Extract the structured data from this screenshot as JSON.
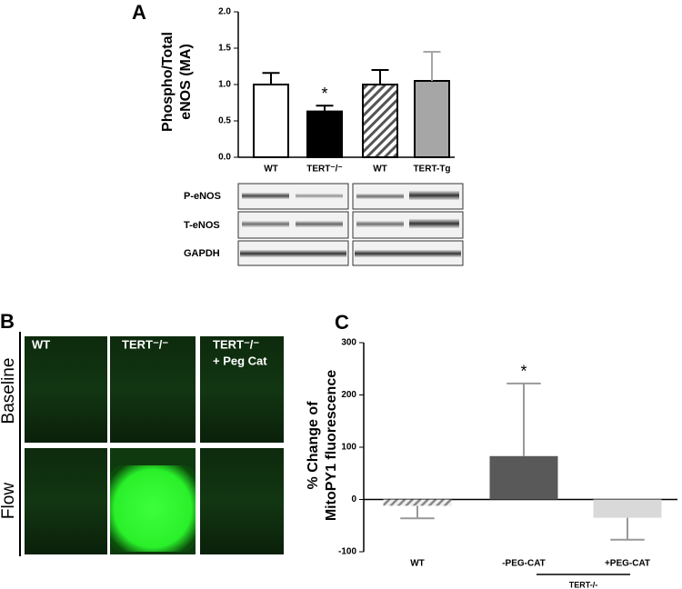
{
  "chart_data": [
    {
      "type": "bar",
      "label": "A",
      "ylabel": [
        "Phospho/Total",
        "eNOS (MA)"
      ],
      "categories": [
        "WT",
        "TERT⁻/⁻",
        "WT",
        "TERT-Tg"
      ],
      "values": [
        1.0,
        0.63,
        1.0,
        1.05
      ],
      "errors": [
        0.16,
        0.08,
        0.2,
        0.4
      ],
      "colors": [
        "#ffffff",
        "#000000",
        "#ffffff",
        "#a6a6a6"
      ],
      "patterns": [
        "solid",
        "solid",
        "hatch",
        "solid"
      ],
      "ylim": [
        0,
        2
      ],
      "yticks": [
        {
          "value": 0,
          "label": "0.0"
        },
        {
          "value": 0.5,
          "label": "0.5"
        },
        {
          "value": 1,
          "label": "1.0"
        },
        {
          "value": 1.5,
          "label": "1.5"
        },
        {
          "value": 2,
          "label": "2.0"
        }
      ],
      "annotations": [
        "*"
      ]
    },
    {
      "type": "bar",
      "label": "C",
      "ylabel": [
        "% Change of",
        "MitoPY1 fluorescence"
      ],
      "categories": [
        "WT",
        "-PEG-CAT",
        "+PEG-CAT"
      ],
      "group_label": "TERT-/-",
      "values": [
        -12,
        83,
        -35
      ],
      "errors": [
        24,
        139,
        42
      ],
      "colors": [
        "#c8c8c8",
        "#595959",
        "#d9d9d9"
      ],
      "patterns": [
        "hatch",
        "solid",
        "solid"
      ],
      "ylim": [
        -100,
        300
      ],
      "yticks": [
        -100,
        0,
        100,
        200,
        300
      ],
      "annotations": [
        "*"
      ]
    }
  ],
  "blots": {
    "rows": [
      "P-eNOS",
      "T-eNOS",
      "GAPDH"
    ]
  },
  "micrographs": {
    "label": "B",
    "columns": [
      [
        "WT"
      ],
      [
        "TERT⁻/⁻"
      ],
      [
        "TERT⁻/⁻",
        "+ Peg Cat"
      ]
    ],
    "rows": [
      "Baseline",
      "Flow"
    ]
  }
}
